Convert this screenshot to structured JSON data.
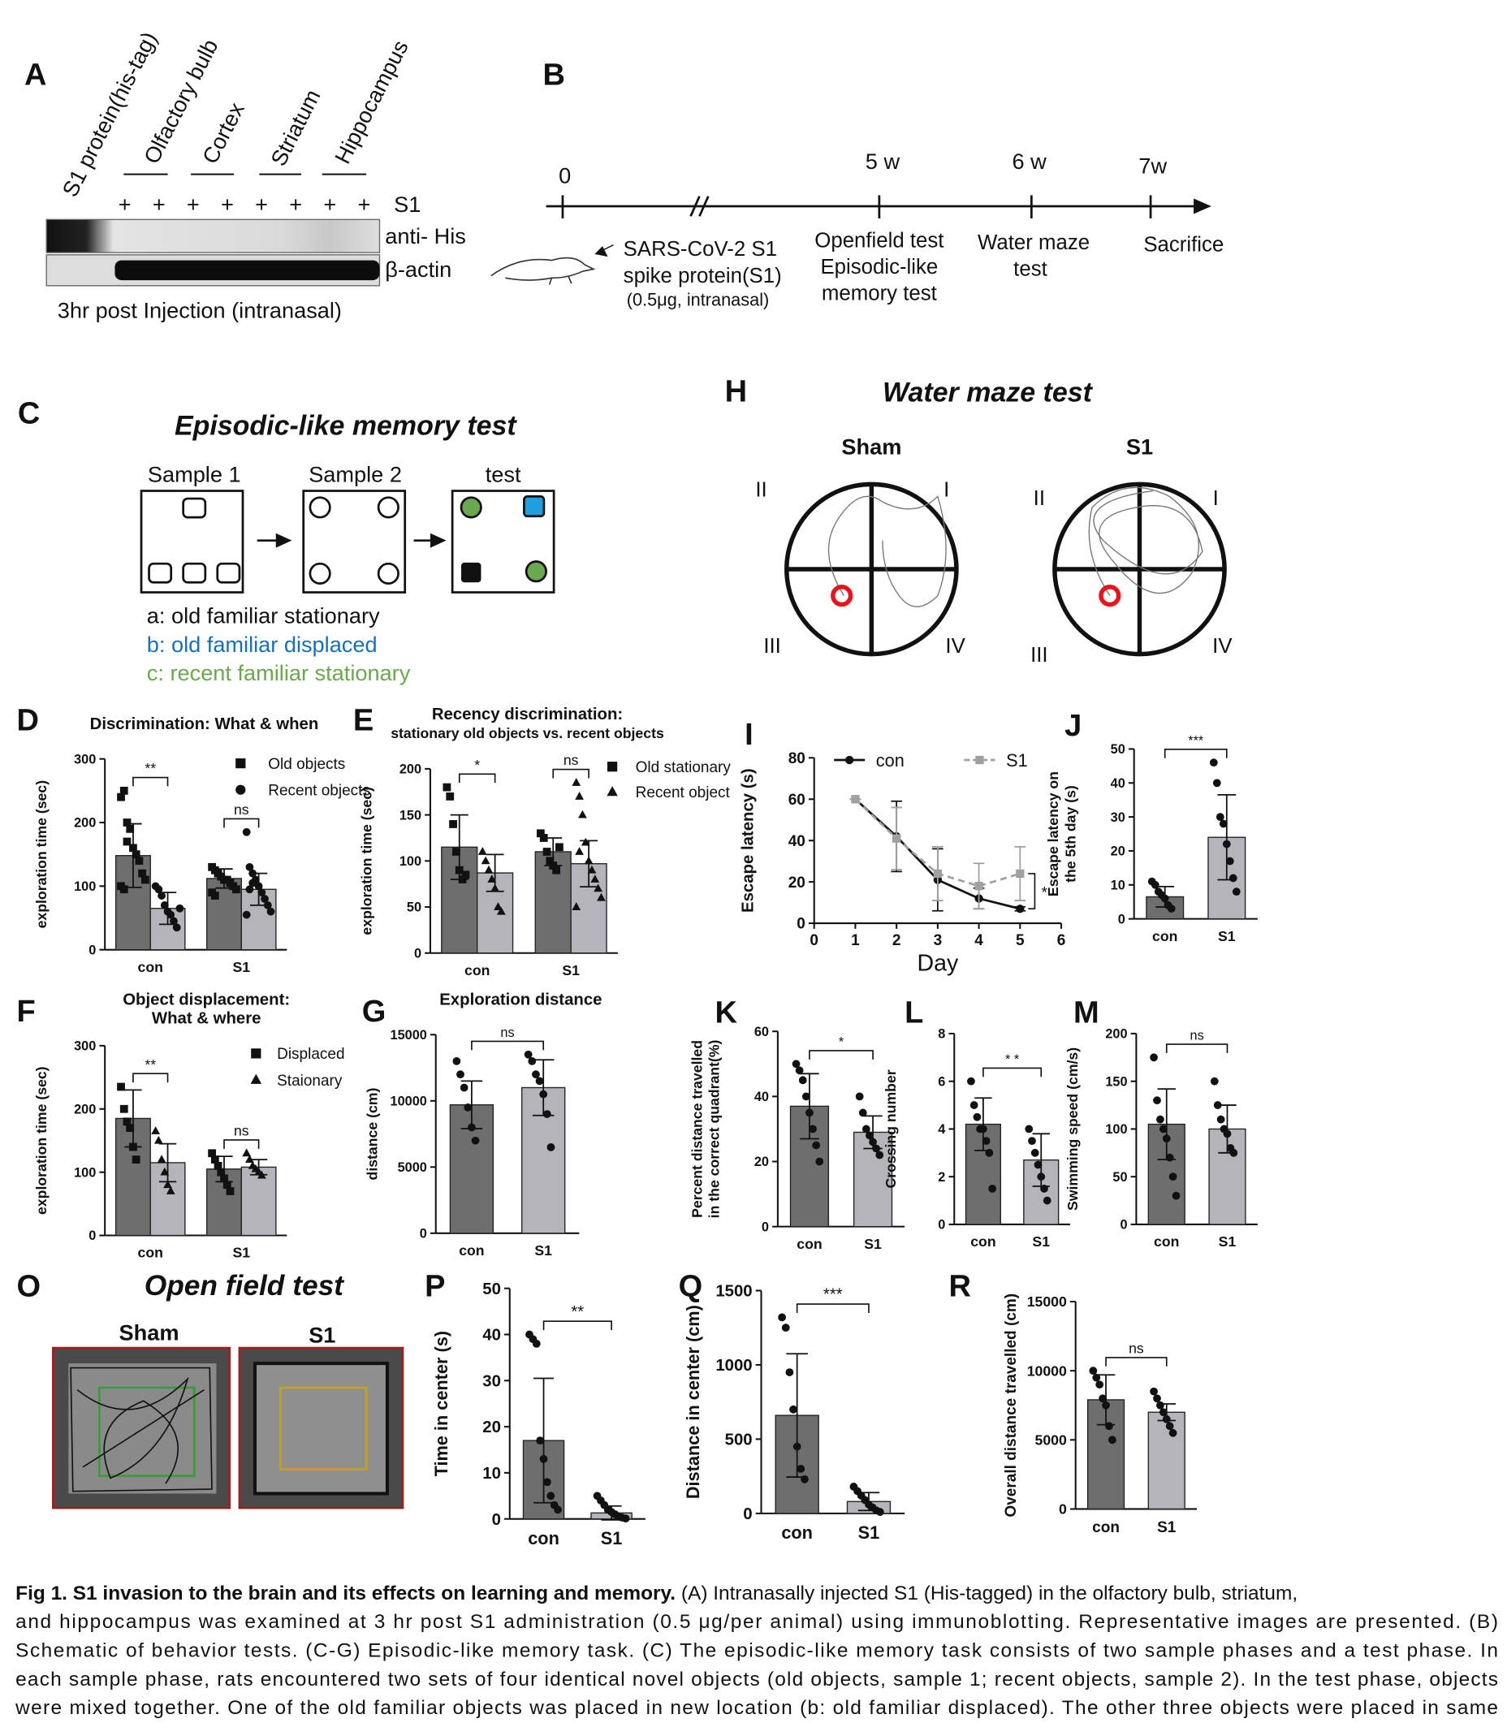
{
  "panels": {
    "A": {
      "letter": "A",
      "lanes": [
        "S1 protein(his-tag)",
        "Olfactory bulb",
        "Cortex",
        "Striatum",
        "Hippocampus"
      ],
      "signs": [
        "+",
        "+",
        "+",
        "+",
        "+",
        "+",
        "+",
        "+"
      ],
      "row_label": "S1",
      "blots": [
        "anti- His",
        "β-actin"
      ],
      "note": "3hr post  Injection (intranasal)"
    },
    "B": {
      "letter": "B",
      "times": [
        "0",
        "5 w",
        "6 w",
        "7w"
      ],
      "injection": [
        "SARS-CoV-2 S1",
        "spike protein(S1)",
        "(0.5μg, intranasal)"
      ],
      "openfield": [
        "Openfield test",
        "Episodic-like",
        "memory test"
      ],
      "watermaze": [
        "Water maze",
        "test"
      ],
      "end": "Sacrifice"
    },
    "C": {
      "letter": "C",
      "title": "Episodic-like memory test",
      "boxes": [
        "Sample 1",
        "Sample 2",
        "test"
      ],
      "legend": [
        "a: old familiar stationary",
        "b: old familiar displaced",
        "c: recent familiar stationary"
      ]
    },
    "H": {
      "letter": "H",
      "title": "Water maze test",
      "groups": [
        "Sham",
        "S1"
      ],
      "quadrants": [
        "II",
        "I",
        "III",
        "IV"
      ]
    },
    "O": {
      "letter": "O",
      "title": "Open field test",
      "groups": [
        "Sham",
        "S1"
      ]
    },
    "D": {
      "letter": "D",
      "title": [
        "Discrimination: What & when"
      ],
      "ylabel": [
        "exploration time (sec)"
      ],
      "ylim": [
        0,
        300
      ],
      "yticks": [
        0,
        100,
        200,
        300
      ],
      "categories": [
        "con",
        "S1"
      ],
      "series": [
        {
          "name": "Old objects",
          "color": "#6e6e6e",
          "marker": "square",
          "values": [
            148,
            112
          ],
          "errors": [
            50,
            15
          ],
          "points": [
            [
              240,
              250,
              200,
              190,
              160,
              150,
              140,
              120,
              110,
              100,
              95,
              170
            ],
            [
              130,
              125,
              120,
              115,
              110,
              110,
              105,
              100,
              95,
              90,
              85,
              120
            ]
          ]
        },
        {
          "name": "Recent objects",
          "color": "#b4b4ba",
          "marker": "circle",
          "values": [
            65,
            95
          ],
          "errors": [
            25,
            25
          ],
          "points": [
            [
              100,
              95,
              85,
              70,
              60,
              55,
              45,
              35,
              65
            ],
            [
              185,
              130,
              120,
              110,
              100,
              90,
              80,
              70,
              60,
              55,
              95,
              105
            ]
          ]
        }
      ],
      "sig": [
        "**",
        "ns"
      ]
    },
    "E": {
      "letter": "E",
      "title": [
        "Recency discrimination:",
        "stationary old objects vs. recent objects"
      ],
      "ylabel": [
        "exploration time (sec)"
      ],
      "ylim": [
        0,
        200
      ],
      "yticks": [
        0,
        50,
        100,
        150,
        200
      ],
      "categories": [
        "con",
        "S1"
      ],
      "series": [
        {
          "name": "Old stationary",
          "color": "#6e6e6e",
          "marker": "square",
          "values": [
            115,
            110
          ],
          "errors": [
            35,
            15
          ],
          "points": [
            [
              180,
              170,
              140,
              110,
              90,
              80,
              85
            ],
            [
              130,
              125,
              110,
              100,
              95,
              90,
              115
            ]
          ]
        },
        {
          "name": "Recent object",
          "color": "#b4b4ba",
          "marker": "triangle",
          "values": [
            87,
            97
          ],
          "errors": [
            20,
            25
          ],
          "points": [
            [
              110,
              100,
              90,
              80,
              70,
              50,
              45
            ],
            [
              185,
              170,
              150,
              120,
              100,
              90,
              80,
              70,
              60,
              50,
              110
            ]
          ]
        }
      ],
      "sig": [
        "*",
        "ns"
      ]
    },
    "F": {
      "letter": "F",
      "title": [
        "Object displacement:",
        "What & where"
      ],
      "ylabel": [
        "exploration time (sec)"
      ],
      "ylim": [
        0,
        300
      ],
      "yticks": [
        0,
        100,
        200,
        300
      ],
      "categories": [
        "con",
        "S1"
      ],
      "series": [
        {
          "name": "Displaced",
          "color": "#6e6e6e",
          "marker": "square",
          "values": [
            185,
            105
          ],
          "errors": [
            45,
            20
          ],
          "points": [
            [
              235,
              200,
              180,
              170,
              140,
              120
            ],
            [
              130,
              120,
              110,
              100,
              90,
              80,
              70
            ]
          ]
        },
        {
          "name": "Staionary",
          "color": "#b4b4ba",
          "marker": "triangle",
          "values": [
            115,
            108
          ],
          "errors": [
            30,
            12
          ],
          "points": [
            [
              165,
              150,
              120,
              100,
              80,
              70
            ],
            [
              130,
              120,
              110,
              105,
              100,
              95
            ]
          ]
        }
      ],
      "sig": [
        "**",
        "ns"
      ]
    },
    "G": {
      "letter": "G",
      "title": [
        "Exploration distance"
      ],
      "ylabel": [
        "distance (cm)"
      ],
      "ylim": [
        0,
        15000
      ],
      "yticks": [
        0,
        5000,
        10000,
        15000
      ],
      "categories": [
        "con",
        "S1"
      ],
      "colors": [
        "#6e6e6e",
        "#b4b4ba"
      ],
      "values": [
        9700,
        11000
      ],
      "errors": [
        1800,
        2100
      ],
      "points": [
        [
          13000,
          12000,
          11000,
          9500,
          8000,
          7000
        ],
        [
          13500,
          13000,
          12000,
          11500,
          10500,
          9000,
          6500
        ]
      ],
      "sig": [
        "ns"
      ]
    },
    "I": {
      "letter": "I",
      "ylabel": [
        "Escape latency (s)"
      ],
      "xlabel": "Day",
      "xlim": [
        0,
        6
      ],
      "xticks": [
        0,
        1,
        2,
        3,
        4,
        5,
        6
      ],
      "ylim": [
        0,
        80
      ],
      "yticks": [
        0,
        20,
        40,
        60,
        80
      ],
      "series": [
        {
          "name": "con",
          "color": "#111111",
          "marker": "circle",
          "dashed": false,
          "x": [
            1,
            2,
            3,
            4,
            5
          ],
          "values": [
            60,
            42,
            21,
            12,
            7
          ],
          "errors": [
            0,
            17,
            15,
            5,
            1
          ]
        },
        {
          "name": "S1",
          "color": "#a0a0a0",
          "marker": "square",
          "dashed": true,
          "x": [
            1,
            2,
            3,
            4,
            5
          ],
          "values": [
            60,
            41,
            24,
            18,
            24
          ],
          "errors": [
            0,
            15,
            13,
            11,
            13
          ]
        }
      ],
      "sig": [
        "*"
      ]
    },
    "J": {
      "letter": "J",
      "ylabel": [
        "Escape latency on",
        "the 5th day (s)"
      ],
      "ylim": [
        0,
        50
      ],
      "yticks": [
        0,
        10,
        20,
        30,
        40,
        50
      ],
      "categories": [
        "con",
        "S1"
      ],
      "colors": [
        "#6e6e6e",
        "#b4b4ba"
      ],
      "values": [
        6.5,
        24
      ],
      "errors": [
        3,
        12.5
      ],
      "points": [
        [
          11,
          10,
          8,
          7,
          6,
          4,
          3
        ],
        [
          46,
          40,
          30,
          28,
          22,
          17,
          12,
          8
        ]
      ],
      "sig": [
        "***"
      ]
    },
    "K": {
      "letter": "K",
      "ylabel": [
        "Percent distance travelled",
        "in the correct quadrant(%)"
      ],
      "ylim": [
        0,
        60
      ],
      "yticks": [
        0,
        20,
        40,
        60
      ],
      "categories": [
        "con",
        "S1"
      ],
      "colors": [
        "#6e6e6e",
        "#b4b4ba"
      ],
      "values": [
        37,
        29
      ],
      "errors": [
        10,
        5
      ],
      "points": [
        [
          50,
          48,
          45,
          40,
          35,
          30,
          25,
          20
        ],
        [
          40,
          35,
          30,
          28,
          26,
          24,
          22
        ]
      ],
      "sig": [
        "*"
      ]
    },
    "L": {
      "letter": "L",
      "ylabel": [
        "Crossing number"
      ],
      "ylim": [
        0,
        8
      ],
      "yticks": [
        0,
        2,
        4,
        6,
        8
      ],
      "categories": [
        "con",
        "S1"
      ],
      "colors": [
        "#6e6e6e",
        "#b4b4ba"
      ],
      "values": [
        4.2,
        2.7
      ],
      "errors": [
        1.1,
        1.1
      ],
      "points": [
        [
          6,
          5,
          4.5,
          4,
          4,
          3.5,
          3,
          1.5
        ],
        [
          4,
          3.5,
          3,
          2.5,
          2,
          1.5,
          1
        ]
      ],
      "sig": [
        "* *"
      ]
    },
    "M": {
      "letter": "M",
      "ylabel": [
        "Swimming speed (cm/s)"
      ],
      "ylim": [
        0,
        200
      ],
      "yticks": [
        0,
        50,
        100,
        150,
        200
      ],
      "categories": [
        "con",
        "S1"
      ],
      "colors": [
        "#6e6e6e",
        "#b4b4ba"
      ],
      "values": [
        105,
        100
      ],
      "errors": [
        37,
        25
      ],
      "points": [
        [
          175,
          130,
          110,
          100,
          90,
          70,
          50,
          30
        ],
        [
          150,
          125,
          110,
          100,
          95,
          80,
          75
        ]
      ],
      "sig": [
        "ns"
      ]
    },
    "P": {
      "letter": "P",
      "ylabel": [
        "Time in center (s)"
      ],
      "ylim": [
        0,
        50
      ],
      "yticks": [
        0,
        10,
        20,
        30,
        40,
        50
      ],
      "categories": [
        "con",
        "S1"
      ],
      "colors": [
        "#6e6e6e",
        "#b4b4ba"
      ],
      "values": [
        17,
        1.3
      ],
      "errors": [
        13.5,
        1.5
      ],
      "points": [
        [
          40,
          39,
          38,
          17,
          13,
          8,
          5,
          3,
          2
        ],
        [
          5,
          4,
          3,
          2,
          1.5,
          1,
          0.5,
          0.3,
          0.1
        ]
      ],
      "sig": [
        "**"
      ]
    },
    "Q": {
      "letter": "Q",
      "ylabel": [
        "Distance in center (cm)"
      ],
      "ylim": [
        0,
        1500
      ],
      "yticks": [
        0,
        500,
        1000,
        1500
      ],
      "categories": [
        "con",
        "S1"
      ],
      "colors": [
        "#6e6e6e",
        "#b4b4ba"
      ],
      "values": [
        660,
        80
      ],
      "errors": [
        415,
        60
      ],
      "points": [
        [
          1320,
          1250,
          950,
          700,
          450,
          300,
          230
        ],
        [
          180,
          150,
          120,
          90,
          60,
          40,
          20,
          10
        ]
      ],
      "sig": [
        "***"
      ]
    },
    "R": {
      "letter": "R",
      "ylabel": [
        "Overall distance travelled (cm)"
      ],
      "ylim": [
        0,
        15000
      ],
      "yticks": [
        0,
        5000,
        10000,
        15000
      ],
      "categories": [
        "con",
        "S1"
      ],
      "colors": [
        "#6e6e6e",
        "#b4b4ba"
      ],
      "values": [
        7900,
        7000
      ],
      "errors": [
        1800,
        600
      ],
      "points": [
        [
          10000,
          9500,
          9000,
          8000,
          7500,
          6000,
          5000
        ],
        [
          8500,
          8000,
          7500,
          7000,
          6500,
          6000,
          5500
        ]
      ],
      "sig": [
        "ns"
      ]
    }
  },
  "caption": {
    "label": "Fig 1.  S1 invasion to the brain and its effects on learning and memory.",
    "lines": [
      " (A) Intranasally injected S1 (His-tagged) in the olfactory bulb, striatum,",
      "and hippocampus was examined at 3 hr post S1 administration (0.5 μg/per animal) using immunoblotting. Representative images are presented. (B)",
      "Schematic of behavior tests. (C-G) Episodic-like memory task. (C) The episodic-like memory task consists of two sample phases and a test phase. In",
      "each sample phase, rats encountered two sets of four identical novel objects (old objects, sample 1; recent objects, sample 2). In the test phase, objects",
      "were mixed together. One of the old familiar objects was placed in new location (b: old familiar displaced). The other three objects were placed in same"
    ]
  }
}
